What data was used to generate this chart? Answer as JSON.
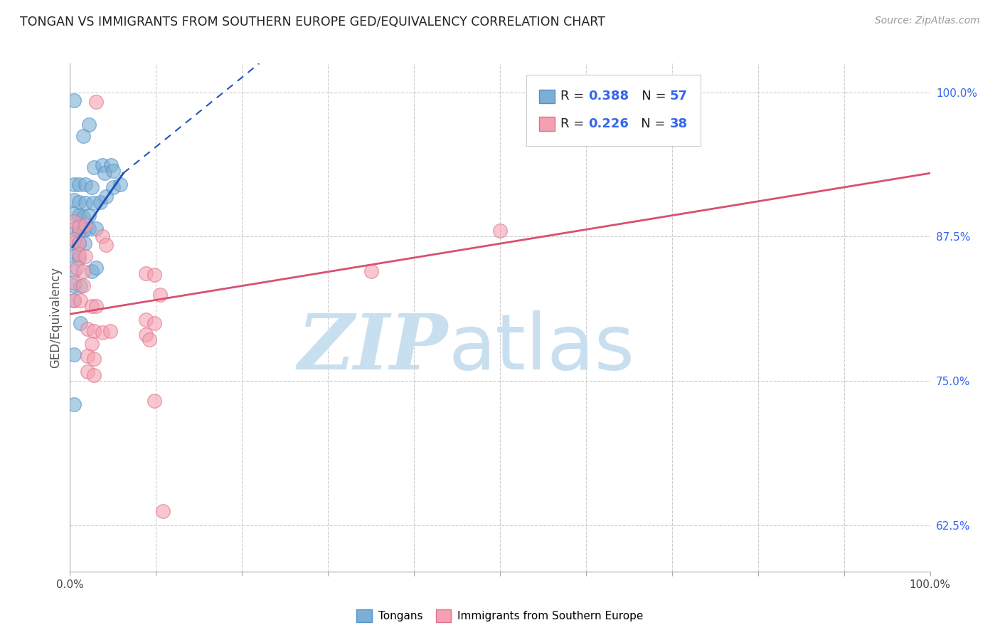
{
  "title": "TONGAN VS IMMIGRANTS FROM SOUTHERN EUROPE GED/EQUIVALENCY CORRELATION CHART",
  "source": "Source: ZipAtlas.com",
  "ylabel": "GED/Equivalency",
  "xlim": [
    0.0,
    1.0
  ],
  "ylim": [
    0.585,
    1.025
  ],
  "ytick_positions": [
    0.625,
    0.75,
    0.875,
    1.0
  ],
  "ytick_labels": [
    "62.5%",
    "75.0%",
    "87.5%",
    "100.0%"
  ],
  "xtick_positions": [
    0.0,
    0.1,
    0.2,
    0.3,
    0.4,
    0.5,
    0.6,
    0.7,
    0.8,
    0.9,
    1.0
  ],
  "blue_color": "#7bafd4",
  "pink_color": "#f4a0b0",
  "blue_edge_color": "#5590c8",
  "pink_edge_color": "#e07090",
  "blue_line_color": "#2255b8",
  "pink_line_color": "#d85070",
  "grid_color": "#cccccc",
  "watermark_zip_color": "#c8dff0",
  "watermark_atlas_color": "#c8dff0",
  "title_color": "#222222",
  "source_color": "#999999",
  "axis_label_color": "#555555",
  "right_tick_color": "#3366ee",
  "legend_text_color": "#222222",
  "legend_value_color": "#3366ee",
  "blue_scatter": [
    [
      0.005,
      0.993
    ],
    [
      0.015,
      0.962
    ],
    [
      0.022,
      0.972
    ],
    [
      0.028,
      0.935
    ],
    [
      0.038,
      0.937
    ],
    [
      0.048,
      0.937
    ],
    [
      0.005,
      0.92
    ],
    [
      0.01,
      0.92
    ],
    [
      0.018,
      0.92
    ],
    [
      0.025,
      0.918
    ],
    [
      0.005,
      0.907
    ],
    [
      0.01,
      0.905
    ],
    [
      0.018,
      0.904
    ],
    [
      0.027,
      0.904
    ],
    [
      0.005,
      0.895
    ],
    [
      0.01,
      0.893
    ],
    [
      0.015,
      0.892
    ],
    [
      0.022,
      0.893
    ],
    [
      0.005,
      0.882
    ],
    [
      0.01,
      0.88
    ],
    [
      0.016,
      0.881
    ],
    [
      0.022,
      0.882
    ],
    [
      0.03,
      0.882
    ],
    [
      0.005,
      0.87
    ],
    [
      0.01,
      0.869
    ],
    [
      0.017,
      0.869
    ],
    [
      0.005,
      0.858
    ],
    [
      0.01,
      0.857
    ],
    [
      0.005,
      0.845
    ],
    [
      0.005,
      0.833
    ],
    [
      0.012,
      0.832
    ],
    [
      0.005,
      0.82
    ],
    [
      0.035,
      0.905
    ],
    [
      0.042,
      0.91
    ],
    [
      0.05,
      0.918
    ],
    [
      0.058,
      0.92
    ],
    [
      0.04,
      0.93
    ],
    [
      0.05,
      0.932
    ],
    [
      0.025,
      0.845
    ],
    [
      0.03,
      0.848
    ],
    [
      0.012,
      0.8
    ],
    [
      0.005,
      0.773
    ],
    [
      0.005,
      0.73
    ]
  ],
  "pink_scatter": [
    [
      0.03,
      0.992
    ],
    [
      0.005,
      0.888
    ],
    [
      0.01,
      0.883
    ],
    [
      0.018,
      0.885
    ],
    [
      0.005,
      0.873
    ],
    [
      0.01,
      0.87
    ],
    [
      0.01,
      0.86
    ],
    [
      0.018,
      0.858
    ],
    [
      0.008,
      0.848
    ],
    [
      0.015,
      0.845
    ],
    [
      0.005,
      0.835
    ],
    [
      0.015,
      0.833
    ],
    [
      0.005,
      0.82
    ],
    [
      0.012,
      0.82
    ],
    [
      0.025,
      0.815
    ],
    [
      0.03,
      0.815
    ],
    [
      0.038,
      0.875
    ],
    [
      0.042,
      0.868
    ],
    [
      0.02,
      0.795
    ],
    [
      0.028,
      0.793
    ],
    [
      0.038,
      0.792
    ],
    [
      0.047,
      0.793
    ],
    [
      0.025,
      0.782
    ],
    [
      0.02,
      0.772
    ],
    [
      0.028,
      0.769
    ],
    [
      0.02,
      0.758
    ],
    [
      0.028,
      0.755
    ],
    [
      0.5,
      0.88
    ],
    [
      0.35,
      0.845
    ],
    [
      0.105,
      0.825
    ],
    [
      0.088,
      0.843
    ],
    [
      0.098,
      0.842
    ],
    [
      0.088,
      0.803
    ],
    [
      0.098,
      0.8
    ],
    [
      0.088,
      0.79
    ],
    [
      0.092,
      0.786
    ],
    [
      0.098,
      0.733
    ],
    [
      0.108,
      0.637
    ]
  ],
  "blue_line_solid": [
    [
      0.003,
      0.866
    ],
    [
      0.062,
      0.93
    ]
  ],
  "blue_line_dashed": [
    [
      0.062,
      0.93
    ],
    [
      0.22,
      1.025
    ]
  ],
  "pink_line": [
    [
      0.0,
      0.808
    ],
    [
      1.0,
      0.93
    ]
  ],
  "figsize": [
    14.06,
    8.92
  ],
  "dpi": 100
}
